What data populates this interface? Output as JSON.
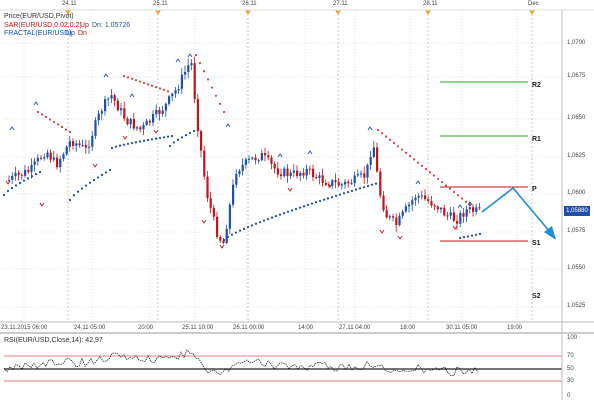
{
  "header": {
    "date_labels": [
      "24.11",
      "25.11",
      "26.11",
      "27.11",
      "28.11",
      "Dec"
    ]
  },
  "indicators": {
    "price_label": "Price(EUR/USD,Pivot)",
    "sar_label": "SAR(EUR/USD,0.02,0.2)",
    "sar_extra": "Up",
    "sar_dn_value": "Dn: 1.05726",
    "fractal_label": "FRACTAL(EUR/USD)",
    "fractal_up": "Up",
    "fractal_dn": "Dn"
  },
  "y_axis": {
    "labels": [
      "1,0700",
      "1,0675",
      "1,0650",
      "1,0625",
      "1,0600",
      "1,0575",
      "1,0550",
      "1,0525"
    ]
  },
  "x_axis": {
    "labels": [
      "23.11.2015 06:00",
      "24.11 05:00",
      "20:00",
      "25.11 10:00",
      "26.11 00:00",
      "14:00",
      "27.11 04:00",
      "18:00",
      "30.11 05:00",
      "19:00"
    ]
  },
  "levels": {
    "labels": [
      "R2",
      "R1",
      "P",
      "S1",
      "S2"
    ],
    "colors": [
      "#2aa52a",
      "#2aa52a",
      "#c0151a",
      "#c0151a",
      "#c0151a"
    ]
  },
  "current_price": "1,05880",
  "rsi": {
    "label": "RSI(EUR/USD,Close,14): 42,97",
    "labels": [
      "100",
      "70",
      "50",
      "30",
      "0"
    ]
  },
  "colors": {
    "up_candle": "#1f4fa8",
    "down_candle": "#c0151a",
    "sar_up": "#1a4f8c",
    "sar_dn": "#e03c3c",
    "forecast_arrow": "#1c8fd6"
  }
}
